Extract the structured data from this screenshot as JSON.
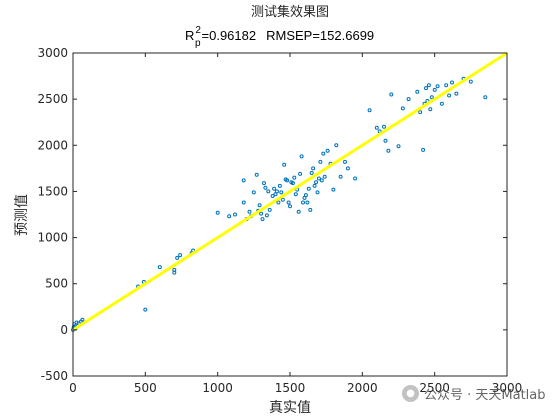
{
  "chart_data": {
    "type": "scatter",
    "title": "测试集效果图",
    "metrics": {
      "r_base": "R",
      "r_sup": "2",
      "r_sub": "p",
      "r_value": "=0.96182",
      "rmsep": "RMSEP=152.6699"
    },
    "xlabel": "真实值",
    "ylabel": "预测值",
    "xlim": [
      0,
      3000
    ],
    "ylim": [
      -500,
      3000
    ],
    "xticks": [
      "0",
      "500",
      "1000",
      "1500",
      "2000",
      "2500",
      "3000"
    ],
    "yticks": [
      "-500",
      "0",
      "500",
      "1000",
      "1500",
      "2000",
      "2500",
      "3000"
    ],
    "fit_line": {
      "x": [
        0,
        3000
      ],
      "y": [
        0,
        3000
      ],
      "color": "#ffff00"
    },
    "marker_color": "#0072bd",
    "series": [
      {
        "points": [
          [
            0,
            0
          ],
          [
            5,
            30
          ],
          [
            8,
            60
          ],
          [
            12,
            10
          ],
          [
            15,
            40
          ],
          [
            20,
            20
          ],
          [
            25,
            80
          ],
          [
            40,
            70
          ],
          [
            55,
            90
          ],
          [
            65,
            110
          ],
          [
            450,
            470
          ],
          [
            490,
            520
          ],
          [
            500,
            220
          ],
          [
            600,
            680
          ],
          [
            700,
            620
          ],
          [
            700,
            650
          ],
          [
            720,
            780
          ],
          [
            740,
            810
          ],
          [
            820,
            830
          ],
          [
            830,
            860
          ],
          [
            1000,
            1270
          ],
          [
            1080,
            1230
          ],
          [
            1120,
            1250
          ],
          [
            1180,
            1620
          ],
          [
            1180,
            1380
          ],
          [
            1200,
            1200
          ],
          [
            1220,
            1280
          ],
          [
            1230,
            1230
          ],
          [
            1250,
            1490
          ],
          [
            1270,
            1680
          ],
          [
            1280,
            1290
          ],
          [
            1290,
            1350
          ],
          [
            1300,
            1260
          ],
          [
            1310,
            1200
          ],
          [
            1320,
            1590
          ],
          [
            1330,
            1540
          ],
          [
            1340,
            1240
          ],
          [
            1350,
            1500
          ],
          [
            1360,
            1300
          ],
          [
            1380,
            1450
          ],
          [
            1390,
            1530
          ],
          [
            1400,
            1470
          ],
          [
            1410,
            1500
          ],
          [
            1420,
            1380
          ],
          [
            1430,
            1560
          ],
          [
            1440,
            1490
          ],
          [
            1450,
            1410
          ],
          [
            1460,
            1790
          ],
          [
            1470,
            1630
          ],
          [
            1480,
            1620
          ],
          [
            1490,
            1380
          ],
          [
            1500,
            1340
          ],
          [
            1510,
            1600
          ],
          [
            1520,
            1590
          ],
          [
            1530,
            1650
          ],
          [
            1540,
            1470
          ],
          [
            1550,
            1520
          ],
          [
            1560,
            1280
          ],
          [
            1570,
            1690
          ],
          [
            1580,
            1880
          ],
          [
            1590,
            1380
          ],
          [
            1600,
            1430
          ],
          [
            1610,
            1460
          ],
          [
            1620,
            1380
          ],
          [
            1630,
            1530
          ],
          [
            1640,
            1300
          ],
          [
            1650,
            1700
          ],
          [
            1660,
            1750
          ],
          [
            1670,
            1560
          ],
          [
            1680,
            1600
          ],
          [
            1690,
            1490
          ],
          [
            1700,
            1640
          ],
          [
            1710,
            1820
          ],
          [
            1720,
            1620
          ],
          [
            1730,
            1910
          ],
          [
            1740,
            1660
          ],
          [
            1760,
            1940
          ],
          [
            1780,
            1800
          ],
          [
            1800,
            1520
          ],
          [
            1820,
            2000
          ],
          [
            1850,
            1660
          ],
          [
            1880,
            1820
          ],
          [
            1900,
            1750
          ],
          [
            1950,
            1640
          ],
          [
            2050,
            2380
          ],
          [
            2100,
            2190
          ],
          [
            2120,
            2150
          ],
          [
            2150,
            2200
          ],
          [
            2160,
            2050
          ],
          [
            2180,
            1940
          ],
          [
            2200,
            2550
          ],
          [
            2250,
            1990
          ],
          [
            2280,
            2400
          ],
          [
            2320,
            2500
          ],
          [
            2380,
            2580
          ],
          [
            2400,
            2360
          ],
          [
            2420,
            1950
          ],
          [
            2430,
            2450
          ],
          [
            2440,
            2620
          ],
          [
            2450,
            2480
          ],
          [
            2460,
            2650
          ],
          [
            2470,
            2390
          ],
          [
            2480,
            2520
          ],
          [
            2500,
            2600
          ],
          [
            2520,
            2640
          ],
          [
            2550,
            2450
          ],
          [
            2580,
            2650
          ],
          [
            2600,
            2540
          ],
          [
            2620,
            2680
          ],
          [
            2650,
            2560
          ],
          [
            2700,
            2720
          ],
          [
            2750,
            2690
          ],
          [
            2850,
            2520
          ]
        ]
      }
    ]
  },
  "watermark": {
    "icon": "wechat-icon",
    "text": "公众号 · 天天Matlab"
  }
}
